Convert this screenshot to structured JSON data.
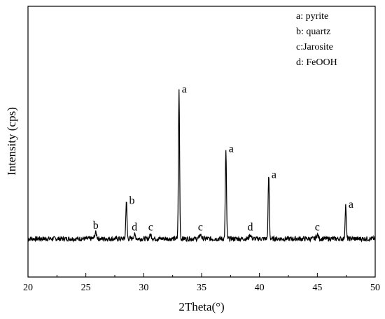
{
  "chart_data": {
    "type": "line",
    "xlabel": "2Theta(°)",
    "ylabel": "Intensity (cps)",
    "xlim": [
      20,
      50
    ],
    "xticks": [
      20,
      25,
      30,
      35,
      40,
      45,
      50
    ],
    "ylim": [
      0,
      100
    ],
    "baseline": 8,
    "grid": false,
    "legend_position": "top-right",
    "legend": [
      "a: pyrite",
      "b: quartz",
      "c:Jarosite",
      "d: FeOOH"
    ],
    "peaks": [
      {
        "x": 25.85,
        "y": 11,
        "label": "b"
      },
      {
        "x": 28.5,
        "y": 27,
        "label": "b"
      },
      {
        "x": 29.2,
        "y": 10,
        "label": "d"
      },
      {
        "x": 30.6,
        "y": 10,
        "label": "c"
      },
      {
        "x": 33.05,
        "y": 83,
        "label": "a"
      },
      {
        "x": 34.9,
        "y": 10,
        "label": "c"
      },
      {
        "x": 37.1,
        "y": 53,
        "label": "a"
      },
      {
        "x": 39.2,
        "y": 10,
        "label": "d"
      },
      {
        "x": 40.8,
        "y": 40,
        "label": "a"
      },
      {
        "x": 45.0,
        "y": 10,
        "label": "c"
      },
      {
        "x": 47.45,
        "y": 25,
        "label": "a"
      }
    ]
  }
}
